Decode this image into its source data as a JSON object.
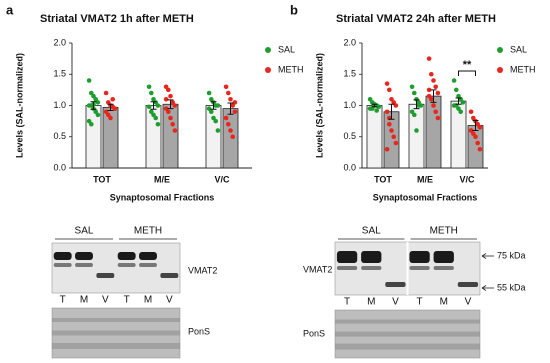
{
  "panels": [
    "a",
    "b"
  ],
  "chart_data": [
    {
      "type": "bar",
      "title": "Striatal VMAT2 1h after METH",
      "y_label": "Levels (SAL-normalized)",
      "x_label": "Synaptosomal Fractions",
      "categories": [
        "TOT",
        "M/E",
        "V/C"
      ],
      "legend": "right",
      "series": [
        {
          "name": "SAL",
          "color": "#1e9e2e",
          "bar_color": "#f2f2f2",
          "values": [
            1.0,
            1.0,
            1.0
          ],
          "errors": [
            0.06,
            0.06,
            0.06
          ],
          "points": [
            [
              1.4,
              1.2,
              1.15,
              1.1,
              1.05,
              1.0,
              1.0,
              0.95,
              0.9,
              0.85,
              0.75,
              0.7,
              1.02
            ],
            [
              1.3,
              1.2,
              1.1,
              1.05,
              1.0,
              0.98,
              0.9,
              0.85,
              0.8,
              0.7
            ],
            [
              1.2,
              1.1,
              1.05,
              1.0,
              1.0,
              0.95,
              0.9,
              0.8,
              0.75,
              0.6
            ]
          ]
        },
        {
          "name": "METH",
          "color": "#e8261c",
          "bar_color": "#a6a6a6",
          "values": [
            0.97,
            1.02,
            0.95
          ],
          "errors": [
            0.05,
            0.07,
            0.09
          ],
          "points": [
            [
              1.2,
              1.05,
              1.0,
              0.98,
              0.95,
              0.9,
              0.85,
              0.8,
              1.1,
              0.95
            ],
            [
              1.3,
              1.25,
              1.15,
              1.05,
              1.0,
              0.95,
              0.9,
              0.8,
              0.7,
              0.6,
              1.1
            ],
            [
              1.3,
              1.2,
              1.1,
              1.0,
              0.9,
              0.8,
              0.7,
              0.6,
              0.5,
              1.05
            ]
          ]
        }
      ],
      "ylim": [
        0,
        2
      ],
      "yticks": [
        {
          "value": 0,
          "label": "0.0"
        },
        0.5,
        {
          "value": 1,
          "label": "1.0"
        },
        1.5,
        {
          "value": 2,
          "label": "2.0"
        }
      ]
    },
    {
      "type": "bar",
      "title": "Striatal VMAT2 24h after METH",
      "y_label": "Levels (SAL-normalized)",
      "x_label": "Synaptosomal Fractions",
      "categories": [
        "TOT",
        "M/E",
        "V/C"
      ],
      "legend": "right",
      "series": [
        {
          "name": "SAL",
          "color": "#1e9e2e",
          "bar_color": "#f2f2f2",
          "values": [
            1.0,
            1.02,
            1.07
          ],
          "errors": [
            0.02,
            0.07,
            0.05
          ],
          "points": [
            [
              1.1,
              1.05,
              1.0,
              1.0,
              0.98,
              0.95,
              0.95,
              1.02,
              0.92
            ],
            [
              1.3,
              1.2,
              1.1,
              1.05,
              1.0,
              0.9,
              0.85,
              0.6,
              1.0
            ],
            [
              1.4,
              1.25,
              1.15,
              1.1,
              1.05,
              1.0,
              1.0,
              0.95,
              0.9
            ]
          ]
        },
        {
          "name": "METH",
          "color": "#e8261c",
          "bar_color": "#a6a6a6",
          "values": [
            0.9,
            1.15,
            0.68
          ],
          "errors": [
            0.12,
            0.1,
            0.08
          ],
          "points": [
            [
              1.35,
              1.25,
              1.1,
              1.05,
              1.0,
              0.9,
              0.8,
              0.6,
              0.5,
              0.4,
              0.3,
              0.7
            ],
            [
              1.75,
              1.5,
              1.4,
              1.3,
              1.2,
              1.15,
              1.1,
              1.0,
              0.9,
              0.8,
              1.25
            ],
            [
              0.9,
              0.8,
              0.75,
              0.7,
              0.65,
              0.6,
              0.55,
              0.5,
              0.4,
              0.3,
              0.6
            ]
          ]
        }
      ],
      "annotations": [
        {
          "text": "**",
          "category": 2
        }
      ],
      "ylim": [
        0,
        2
      ],
      "yticks": [
        {
          "value": 0,
          "label": "0.0"
        },
        0.5,
        {
          "value": 1,
          "label": "1.0"
        },
        1.5,
        {
          "value": 2,
          "label": "2.0"
        }
      ]
    }
  ],
  "blots": [
    {
      "groups": [
        "SAL",
        "METH"
      ],
      "band_label": "VMAT2",
      "lanes": [
        "T",
        "M",
        "V",
        "T",
        "M",
        "V"
      ],
      "stain_label": "PonS"
    },
    {
      "groups": [
        "SAL",
        "METH"
      ],
      "band_label": "VMAT2",
      "lanes": [
        "T",
        "M",
        "V",
        "T",
        "M",
        "V"
      ],
      "stain_label": "PonS",
      "markers": [
        "75 kDa",
        "55 kDa"
      ]
    }
  ]
}
